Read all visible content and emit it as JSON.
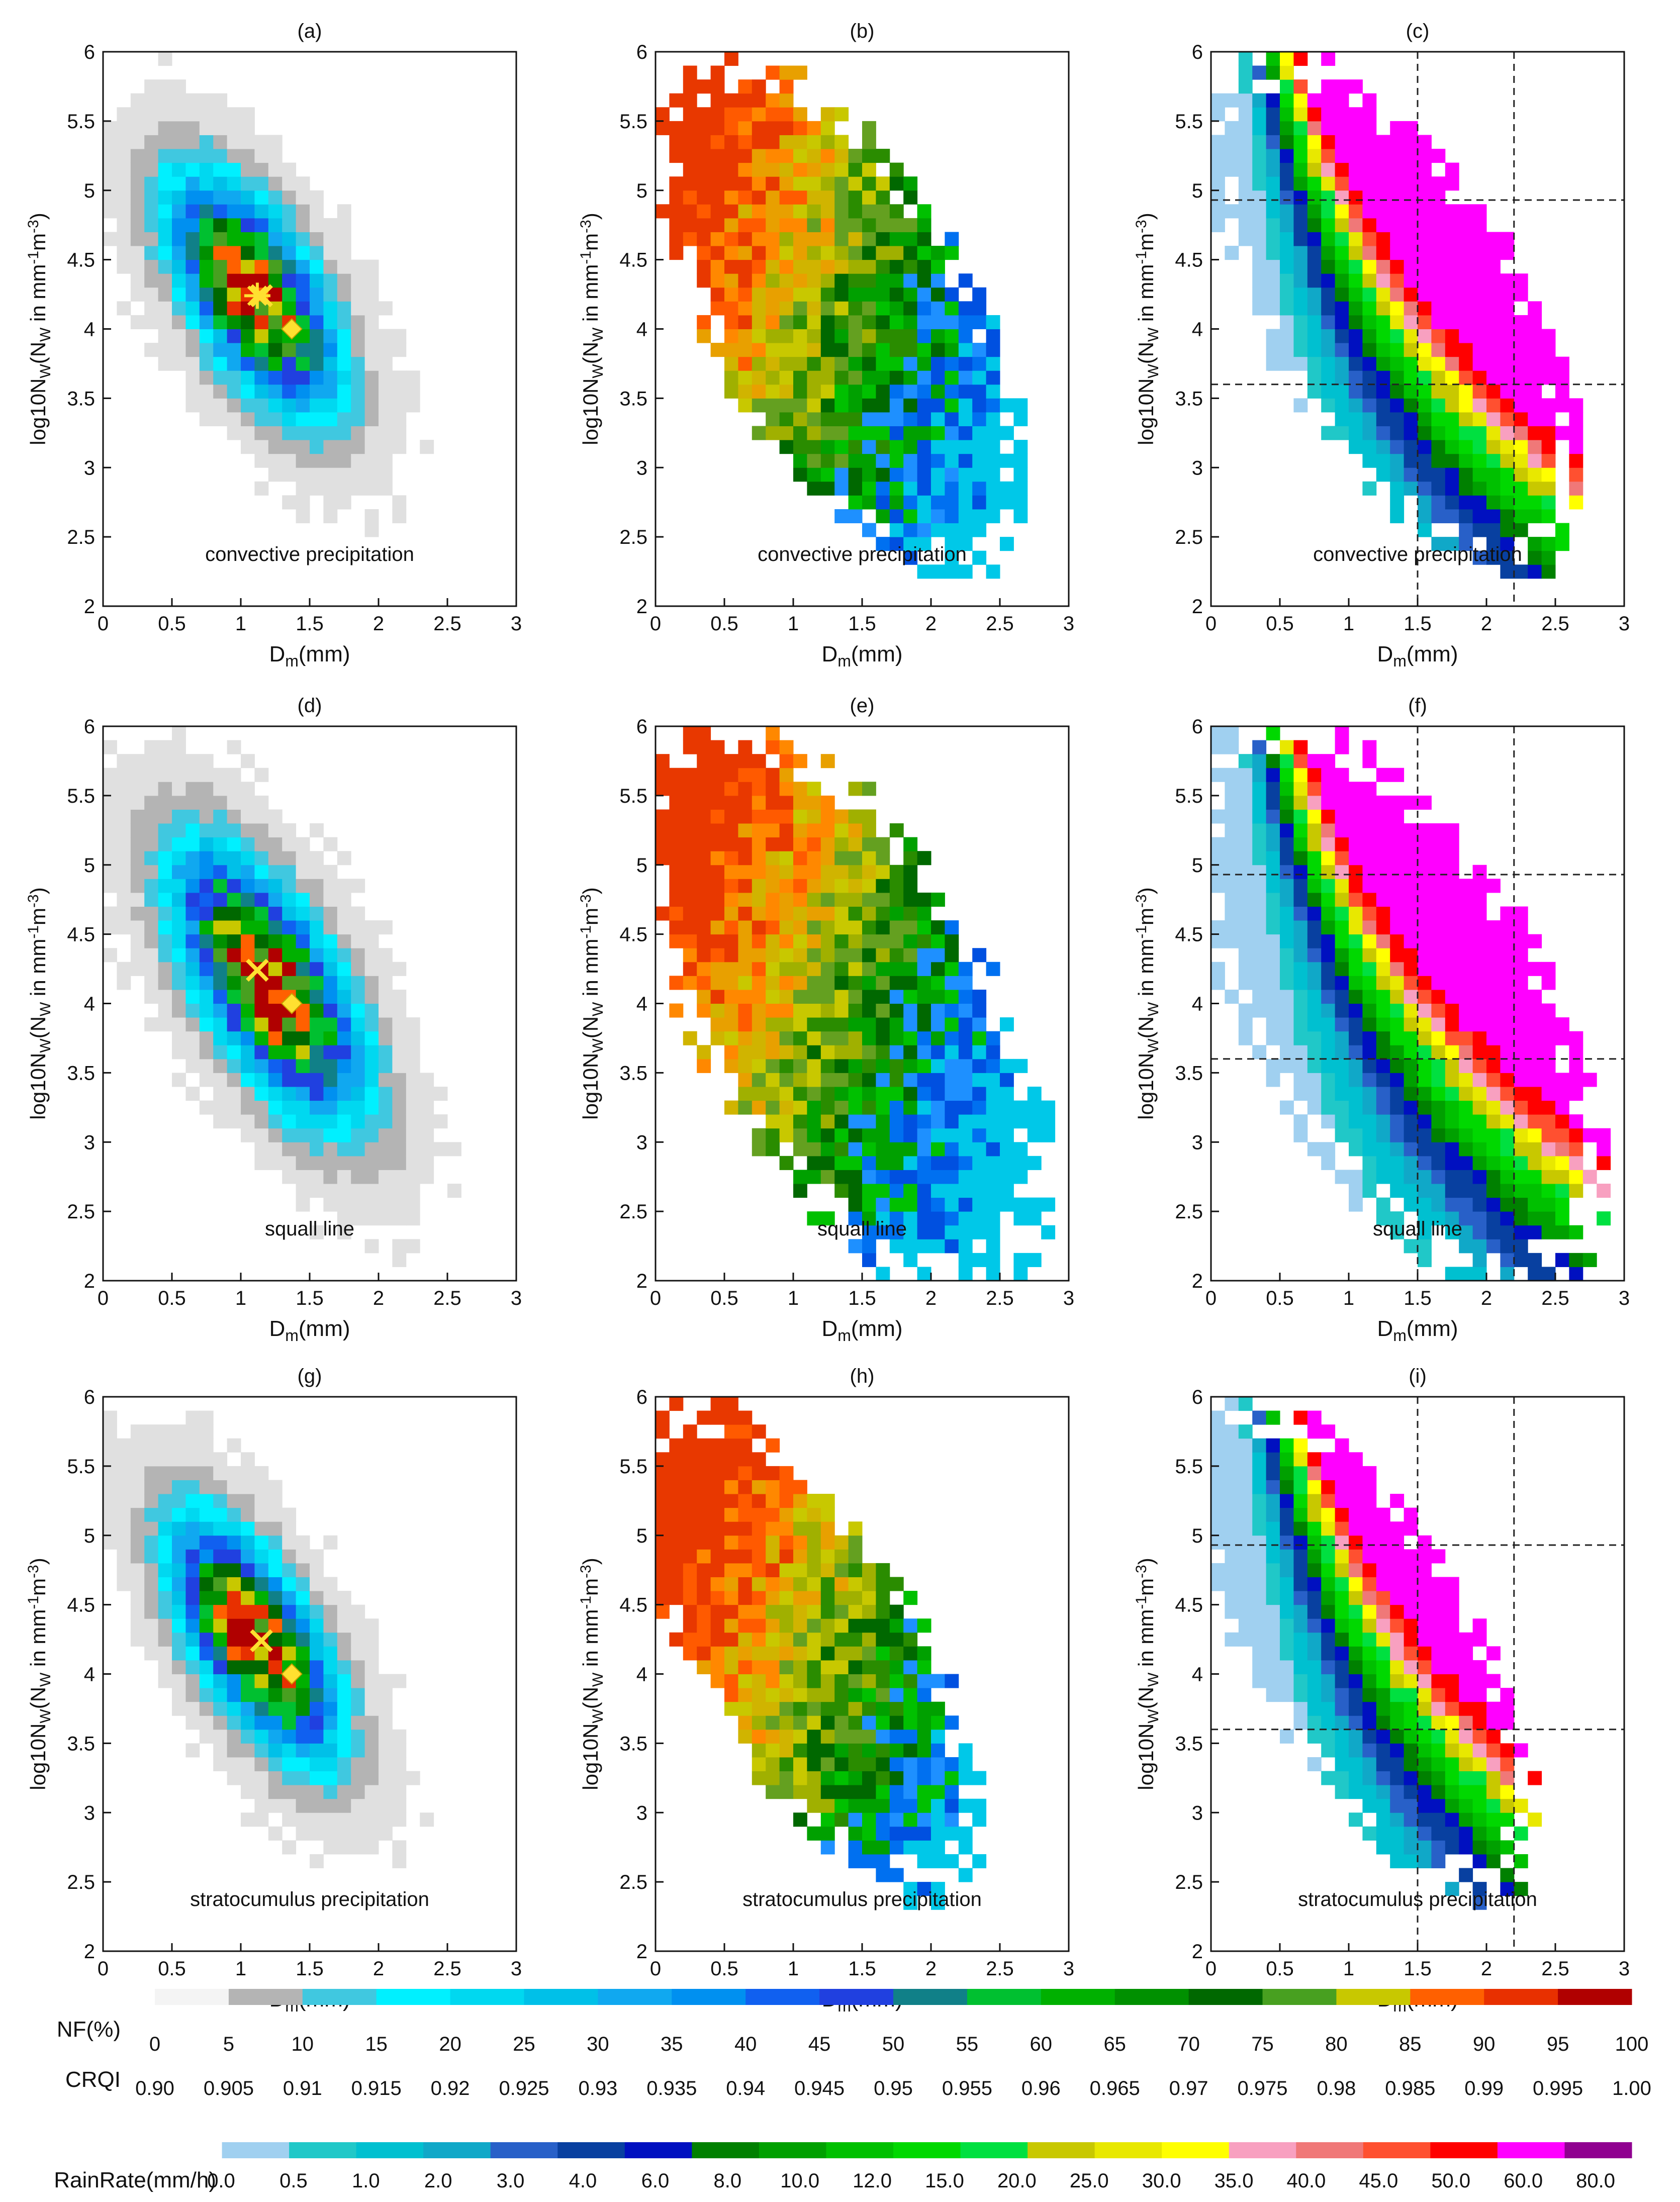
{
  "chart_data": {
    "type": "heatmap",
    "description_labels": {
      "xlabel_main": "D",
      "xlabel_sub": "m",
      "xlabel_unit": "(mm)",
      "ylabel_pre": "log10N",
      "ylabel_sub": "W",
      "ylabel_mid": "(N",
      "ylabel_sub2": "W",
      "ylabel_post": " in mm",
      "ylabel_exp1": "-1",
      "ylabel_m": "m",
      "ylabel_exp2": "-3",
      "ylabel_close": ")"
    },
    "xlim": [
      0,
      3
    ],
    "ylim": [
      2,
      6
    ],
    "xticks": [
      "0",
      "0.5",
      "1",
      "1.5",
      "2",
      "2.5",
      "3"
    ],
    "yticks": [
      "2",
      "2.5",
      "3",
      "3.5",
      "4",
      "4.5",
      "5",
      "5.5",
      "6"
    ],
    "bin": {
      "dx": 0.1,
      "dy": 0.1
    },
    "reference_lines": {
      "vertical": [
        1.5,
        2.2
      ],
      "horizontal": [
        3.6,
        4.93
      ]
    },
    "rows": [
      {
        "type": "convective",
        "panels": [
          {
            "label": "(a)",
            "name": "convective precipitation",
            "kind": "nf",
            "center": [
              1.1,
              4.25
            ],
            "spread": [
              0.3,
              0.45
            ],
            "peak": 100,
            "thresh": 3,
            "markers": [
              {
                "type": "star",
                "x": 1.12,
                "y": 4.24
              },
              {
                "type": "cross",
                "x": 1.15,
                "y": 4.24
              },
              {
                "type": "diamond",
                "x": 1.37,
                "y": 4.0
              }
            ]
          },
          {
            "label": "(b)",
            "name": "convective precipitation",
            "kind": "crqi",
            "center": [
              1.35,
              4.1
            ],
            "spread": [
              0.35,
              0.55
            ]
          },
          {
            "label": "(c)",
            "name": "convective precipitation",
            "kind": "rain",
            "center": [
              1.35,
              4.1
            ],
            "spread": [
              0.35,
              0.55
            ],
            "show_lines": true
          }
        ]
      },
      {
        "type": "squall line",
        "panels": [
          {
            "label": "(d)",
            "name": "squall line",
            "kind": "nf",
            "center": [
              1.2,
              4.15
            ],
            "spread": [
              0.32,
              0.55
            ],
            "peak": 100,
            "thresh": 3,
            "markers": [
              {
                "type": "cross",
                "x": 1.12,
                "y": 4.24
              },
              {
                "type": "diamond",
                "x": 1.37,
                "y": 4.0
              }
            ]
          },
          {
            "label": "(e)",
            "name": "squall line",
            "kind": "crqi",
            "center": [
              1.35,
              4.0
            ],
            "spread": [
              0.4,
              0.6
            ]
          },
          {
            "label": "(f)",
            "name": "squall line",
            "kind": "rain",
            "center": [
              1.35,
              4.0
            ],
            "spread": [
              0.4,
              0.6
            ],
            "show_lines": true
          }
        ]
      },
      {
        "type": "stratocumulus",
        "panels": [
          {
            "label": "(g)",
            "name": "stratocumulus precipitation",
            "kind": "nf",
            "center": [
              1.1,
              4.25
            ],
            "spread": [
              0.28,
              0.5
            ],
            "peak": 100,
            "thresh": 3,
            "markers": [
              {
                "type": "cross",
                "x": 1.15,
                "y": 4.24
              },
              {
                "type": "diamond",
                "x": 1.37,
                "y": 4.0
              }
            ]
          },
          {
            "label": "(h)",
            "name": "stratocumulus precipitation",
            "kind": "crqi",
            "center": [
              1.1,
              4.2
            ],
            "spread": [
              0.3,
              0.6
            ]
          },
          {
            "label": "(i)",
            "name": "stratocumulus precipitation",
            "kind": "rain",
            "center": [
              1.1,
              4.2
            ],
            "spread": [
              0.3,
              0.6
            ],
            "show_lines": true
          }
        ]
      }
    ],
    "colorbars": {
      "nf": {
        "label": "NF(%)",
        "ticks": [
          "0",
          "5",
          "10",
          "15",
          "20",
          "25",
          "30",
          "35",
          "40",
          "45",
          "50",
          "55",
          "60",
          "65",
          "70",
          "75",
          "80",
          "85",
          "90",
          "95",
          "100"
        ],
        "colors": [
          "#ffffff",
          "#e0e0e0",
          "#b4b4b4",
          "#40c8e0",
          "#00f0ff",
          "#00d8f0",
          "#00c0e8",
          "#10a8f0",
          "#0090f0",
          "#1060f0",
          "#2040e0",
          "#108088",
          "#00c030",
          "#00b000",
          "#009000",
          "#006800",
          "#48a020",
          "#c8c800",
          "#ff6000",
          "#e83000",
          "#b00000"
        ]
      },
      "crqi": {
        "label": "CRQI",
        "ticks": [
          "0.90",
          "0.905",
          "0.91",
          "0.915",
          "0.92",
          "0.925",
          "0.93",
          "0.935",
          "0.94",
          "0.945",
          "0.95",
          "0.955",
          "0.96",
          "0.965",
          "0.97",
          "0.975",
          "0.98",
          "0.985",
          "0.99",
          "0.995",
          "1.00"
        ]
      },
      "rain": {
        "label": "RainRate(mm/h)",
        "ticks": [
          "0.0",
          "0.5",
          "1.0",
          "2.0",
          "3.0",
          "4.0",
          "6.0",
          "8.0",
          "10.0",
          "12.0",
          "15.0",
          "20.0",
          "25.0",
          "30.0",
          "35.0",
          "40.0",
          "45.0",
          "50.0",
          "60.0",
          "80.0"
        ],
        "colors": [
          "#ffffff",
          "#a0d0f0",
          "#20c8c8",
          "#00c0d0",
          "#10a8c8",
          "#2860c8",
          "#0840a0",
          "#0010c0",
          "#008000",
          "#00a000",
          "#00c000",
          "#00d800",
          "#00e040",
          "#c8c800",
          "#e8e800",
          "#ffff00",
          "#f8a0c0",
          "#f07878",
          "#ff5030",
          "#ff0000",
          "#ff00ff",
          "#900090"
        ]
      }
    }
  }
}
